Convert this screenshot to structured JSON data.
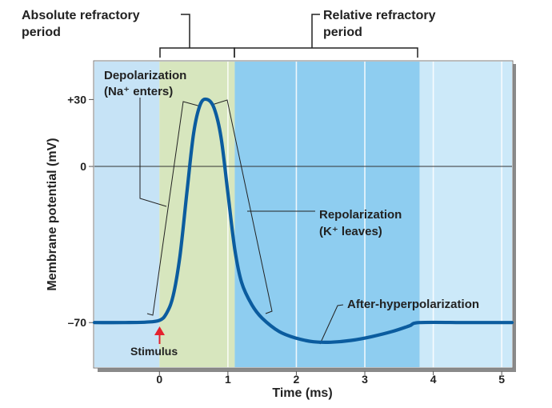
{
  "chart_data": {
    "type": "line",
    "title": "",
    "xlabel": "Time (ms)",
    "ylabel": "Membrane potential (mV)",
    "xlim": [
      -0.95,
      5.15
    ],
    "ylim": [
      -90,
      47
    ],
    "x_ticks": [
      "0",
      "1",
      "2",
      "3",
      "4",
      "5"
    ],
    "x_tick_values": [
      0,
      1,
      2,
      3,
      4,
      5
    ],
    "y_ticks": [
      "+30",
      "0",
      "–70"
    ],
    "y_tick_values": [
      30,
      0,
      -70
    ],
    "baseline": 0,
    "grid": "vertical",
    "colors": {
      "resting": "#c6e3f6",
      "absolute": "#d7e6be",
      "relative": "#8ecdf0",
      "after": "#cce9f9",
      "line": "#0b5c9f",
      "stimulus": "#e4222e"
    },
    "regions": [
      {
        "from": -0.95,
        "to": 0,
        "color_key": "resting"
      },
      {
        "from": 0,
        "to": 1.1,
        "color_key": "absolute"
      },
      {
        "from": 1.1,
        "to": 3.8,
        "color_key": "relative"
      },
      {
        "from": 3.8,
        "to": 5.15,
        "color_key": "after"
      }
    ],
    "series": [
      {
        "points": [
          [
            -0.95,
            -70
          ],
          [
            -0.5,
            -70
          ],
          [
            -0.2,
            -69.8
          ],
          [
            0,
            -69
          ],
          [
            0.1,
            -66
          ],
          [
            0.2,
            -58
          ],
          [
            0.3,
            -40
          ],
          [
            0.4,
            -12
          ],
          [
            0.5,
            15
          ],
          [
            0.6,
            28
          ],
          [
            0.7,
            30
          ],
          [
            0.8,
            26
          ],
          [
            0.9,
            13
          ],
          [
            1.0,
            -12
          ],
          [
            1.1,
            -37
          ],
          [
            1.2,
            -52
          ],
          [
            1.35,
            -62
          ],
          [
            1.5,
            -68
          ],
          [
            1.75,
            -74
          ],
          [
            2.0,
            -77
          ],
          [
            2.25,
            -78.6
          ],
          [
            2.5,
            -78.8
          ],
          [
            2.8,
            -78
          ],
          [
            3.1,
            -76.3
          ],
          [
            3.4,
            -74
          ],
          [
            3.65,
            -71.5
          ],
          [
            3.8,
            -70
          ],
          [
            4.5,
            -70
          ],
          [
            5.15,
            -70
          ]
        ]
      }
    ],
    "annotations": {
      "absolute": "Absolute refractory period",
      "relative": "Relative refractory period",
      "depolarization": "Depolarization (Na⁺ enters)",
      "repolarization": "Repolarization (K⁺ leaves)",
      "afterhyperpolarization": "After-hyperpolarization",
      "stimulus": "Stimulus"
    }
  },
  "labels": {
    "abs_line1": "Absolute refractory",
    "abs_line2": "period",
    "rel_line1": "Relative refractory",
    "rel_line2": "period",
    "depol_line1": "Depolarization",
    "depol_line2": "(Na⁺ enters)",
    "repol_line1": "Repolarization",
    "repol_line2": "(K⁺ leaves)",
    "after": "After-hyperpolarization",
    "stimulus": "Stimulus"
  }
}
